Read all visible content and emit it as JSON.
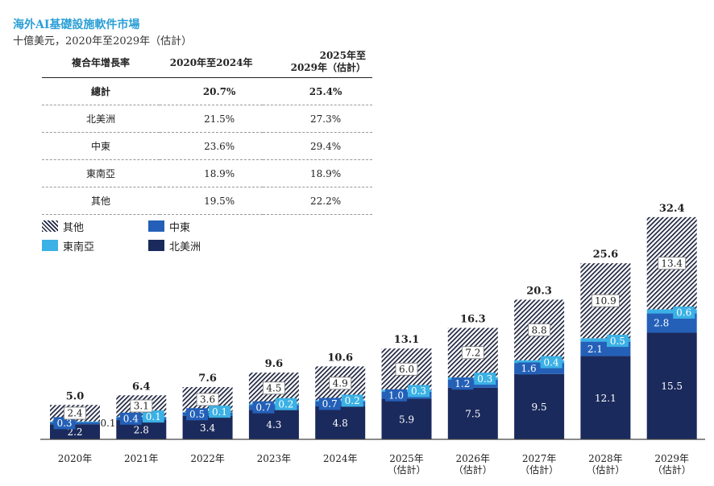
{
  "header": {
    "title": "海外AI基礎設施軟件市場",
    "subtitle": "十億美元，2020年至2029年（估計）"
  },
  "cagr_table": {
    "col_header_0": "複合年增長率",
    "col_header_1": "2020年至2024年",
    "col_header_2_line1": "2025年至",
    "col_header_2_line2": "2029年（估計）",
    "rows": [
      {
        "region": "總計",
        "v2020_2024": "20.7%",
        "v2025_2029": "25.4%"
      },
      {
        "region": "北美洲",
        "v2020_2024": "21.5%",
        "v2025_2029": "27.3%"
      },
      {
        "region": "中東",
        "v2020_2024": "23.6%",
        "v2025_2029": "29.4%"
      },
      {
        "region": "東南亞",
        "v2020_2024": "18.9%",
        "v2025_2029": "18.9%"
      },
      {
        "region": "其他",
        "v2020_2024": "19.5%",
        "v2025_2029": "22.2%"
      }
    ]
  },
  "legend": {
    "other": "其他",
    "middle_east": "中東",
    "southeast_asia": "東南亞",
    "north_america": "北美洲"
  },
  "colors": {
    "north_america": "#1b2a5c",
    "middle_east": "#2460b8",
    "southeast_asia": "#3bb1e5",
    "other_hatch": "#1f2540"
  },
  "chart_data": {
    "type": "bar",
    "stacked": true,
    "unit": "十億美元",
    "categories": [
      [
        "2020年"
      ],
      [
        "2021年"
      ],
      [
        "2022年"
      ],
      [
        "2023年"
      ],
      [
        "2024年"
      ],
      [
        "2025年",
        "（估計）"
      ],
      [
        "2026年",
        "（估計）"
      ],
      [
        "2027年",
        "（估計）"
      ],
      [
        "2028年",
        "（估計）"
      ],
      [
        "2029年",
        "（估計）"
      ]
    ],
    "series": [
      {
        "name": "北美洲",
        "key": "north_america",
        "values": [
          2.2,
          2.8,
          3.4,
          4.3,
          4.8,
          5.9,
          7.5,
          9.5,
          12.1,
          15.5
        ],
        "labels": [
          "2.2",
          "2.8",
          "3.4",
          "4.3",
          "4.8",
          "5.9",
          "7.5",
          "9.5",
          "12.1",
          "15.5"
        ]
      },
      {
        "name": "中東",
        "key": "middle_east",
        "values": [
          0.3,
          0.4,
          0.5,
          0.7,
          0.7,
          1.0,
          1.2,
          1.6,
          2.1,
          2.8
        ],
        "labels": [
          "0.3",
          "0.4",
          "0.5",
          "0.7",
          "0.7",
          "1.0",
          "1.2",
          "1.6",
          "2.1",
          "2.8"
        ]
      },
      {
        "name": "東南亞",
        "key": "southeast_asia",
        "values": [
          0.1,
          0.1,
          0.1,
          0.2,
          0.2,
          0.3,
          0.3,
          0.4,
          0.5,
          0.6
        ],
        "labels": [
          "0.1",
          "0.1",
          "0.1",
          "0.2",
          "0.2",
          "0.3",
          "0.3",
          "0.4",
          "0.5",
          "0.6"
        ]
      },
      {
        "name": "其他",
        "key": "other",
        "values": [
          2.4,
          3.1,
          3.6,
          4.5,
          4.9,
          6.0,
          7.2,
          8.8,
          10.9,
          13.4
        ],
        "labels": [
          "2.4",
          "3.1",
          "3.6",
          "4.5",
          "4.9",
          "6.0",
          "7.2",
          "8.8",
          "10.9",
          "13.4"
        ]
      }
    ],
    "totals": [
      5.0,
      6.4,
      7.6,
      9.6,
      10.6,
      13.1,
      16.3,
      20.3,
      25.6,
      32.4
    ],
    "total_labels": [
      "5.0",
      "6.4",
      "7.6",
      "9.6",
      "10.6",
      "13.1",
      "16.3",
      "20.3",
      "25.6",
      "32.4"
    ],
    "ylim": [
      0,
      32.4
    ],
    "legend_position": "top-left"
  }
}
